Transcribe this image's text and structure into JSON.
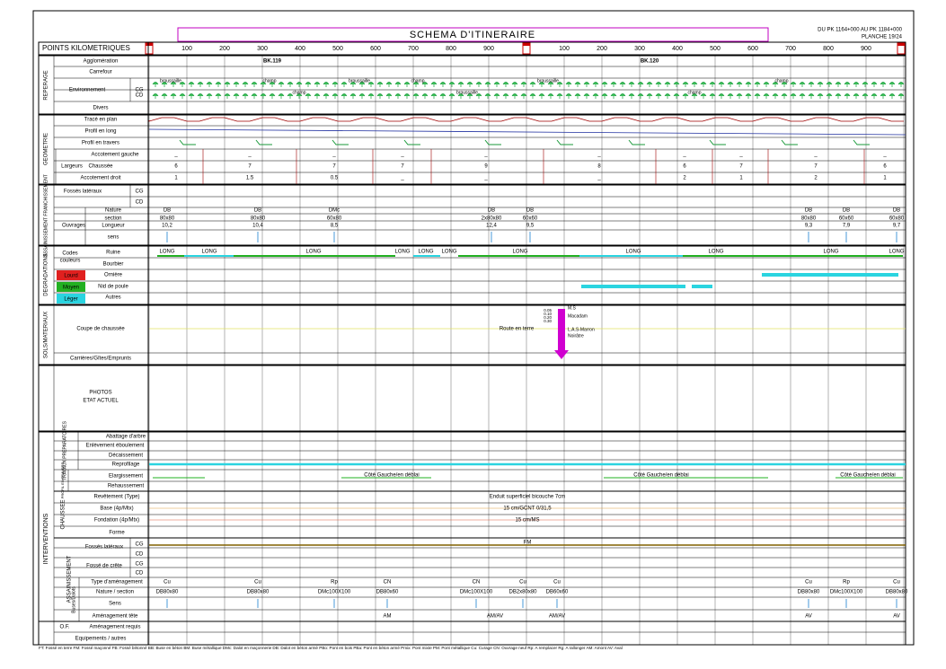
{
  "header": {
    "title": "SCHEMA D'ITINERAIRE",
    "pk_range": "DU PK 1164+000 AU PK 1184+000",
    "sheet": "PLANCHE 19/24"
  },
  "km": {
    "label": "POINTS KILOMETRIQUES",
    "ticks": [
      "100",
      "200",
      "300",
      "400",
      "500",
      "600",
      "700",
      "800",
      "900",
      "100",
      "200",
      "300",
      "400",
      "500",
      "600",
      "700",
      "800",
      "900"
    ]
  },
  "sections": [
    "REPERAGE",
    "GEOMETRIE",
    "ASSAINISSEMENT FRANCHISSEMENT",
    "DEGRADATIONS",
    "SOLS/MATERIAUX",
    "INTERVENTIONS",
    "TRAVAUX PREPARATOIRES",
    "PROFIL EN TRAVERS",
    "CHAUSSEE",
    "ASSAINISSEMENT",
    "Buses/Dalots"
  ],
  "row_labels": [
    "Agglomération",
    "Carrefour",
    "Environnement",
    "Divers",
    "Tracé en plan",
    "Profil en long",
    "Profil en travers",
    "Accotement gauche",
    "Largeurs",
    "Chaussée",
    "Accotement droit",
    "Fossés latéraux",
    "Ouvrages",
    "Nature",
    "section",
    "Longueur",
    "sens",
    "Ruine",
    "Bourbier",
    "Ornière",
    "Nid de poule",
    "Autres",
    "Codes",
    "couleurs",
    "Coupe de chaussée",
    "Carrières/Gîtes/Emprunts",
    "PHOTOS",
    "ETAT ACTUEL",
    "Abattage d'arbre",
    "Enlèvement éboulement",
    "Décaissement",
    "Reprofilage",
    "Elargissement",
    "Rehaussement",
    "Revêtement (Type)",
    "Base (4p/Mtx)",
    "Fondation (4p/Mtx)",
    "Forme",
    "Fossés latéraux",
    "Fossé de crête",
    "Type d'aménagement",
    "Nature / section",
    "Sens",
    "Aménagement tête",
    "O.F.",
    "Aménagement requis",
    "Equipements / autres"
  ],
  "sides": [
    "CG",
    "CD"
  ],
  "severity": {
    "labels": [
      "Lourd",
      "Moyen",
      "Léger"
    ],
    "colors": [
      "#e0201f",
      "#22b022",
      "#2ad4e0"
    ]
  },
  "landmarks": [
    "BK.119",
    "BK.120"
  ],
  "environment": {
    "CG": [
      "broussaille",
      "champ",
      "broussaille",
      "champ",
      "broussaille",
      "champ"
    ],
    "CD": [
      "champ",
      "broussaille",
      "champ"
    ]
  },
  "widths": {
    "left": [
      "_",
      "_",
      "_",
      "_",
      "_",
      "_",
      "_",
      "_",
      "_",
      "_"
    ],
    "carriageway": [
      6,
      7,
      7,
      7,
      9,
      8,
      6,
      7,
      7,
      6
    ],
    "right": [
      1,
      1.5,
      0.5,
      "_",
      "_",
      "_",
      2,
      1,
      2,
      1
    ]
  },
  "culverts": {
    "nature": [
      "DB",
      "DB",
      "DMc",
      "DB",
      "DB",
      "DB",
      "DB",
      "DB"
    ],
    "section": [
      "80x80",
      "80x80",
      "60x80",
      "2x80x80",
      "60x60",
      "80x80",
      "60x60",
      "60x80"
    ],
    "length": [
      "10,2",
      "10,4",
      "8,5",
      "12,4",
      "9,5",
      "9,3",
      "7,9",
      "9,7"
    ]
  },
  "ruin_labels": [
    "LONG",
    "LONG",
    "LONG",
    "LONG",
    "LONG",
    "LONG",
    "LONG",
    "LONG",
    "LONG",
    "LONG",
    "LONG"
  ],
  "soil": {
    "surface": "Route en terre",
    "depths": [
      "0.05",
      "0.10",
      "0.20",
      "0.30"
    ],
    "layers": [
      "M.S",
      "Macadam",
      "L.A.S-Marron",
      "Noirâtre"
    ]
  },
  "works": {
    "widening": [
      "Côté Gauche/en déblai",
      "Côté Gauche/en déblai",
      "Côté Gauche/en déblai"
    ],
    "surfacing": "Enduit superficiel bicouche 7cm",
    "base": "15 cm/GCNT 0/31,5",
    "subbase": "15 cm/MS",
    "ditch": "FM",
    "culvert_type": [
      "Cu",
      "Cu",
      "Rp",
      "CN",
      "CN",
      "Cu",
      "Cu",
      "Cu",
      "Rp",
      "Cu"
    ],
    "culvert_section": [
      "DB80x80",
      "DB80x80",
      "DMc100X100",
      "DB80x60",
      "DMc100X100",
      "DB2x80x80",
      "DB60x60",
      "DB80x80",
      "DMc100X100",
      "DB80x80"
    ],
    "culvert_head": [
      "AM",
      "AM/AV",
      "AM/AV",
      "AV",
      "AV"
    ]
  },
  "footer": "FT: Fossé en terre  FM: Fossé maçonné  FB: Fossé bétonné  BB: Buse en béton  BM: Buse métallique  DMc: Dalot en maçonnerie  DB: Dalot en béton armé  PBo: Pont en bois  PBa: Pont en béton armé  Pmix: Pont mixte  PM: Pont métallique  Cu: Curage  CN: Ouvrage neuf  Rp: A remplacer  Rg: A rallonger  AM: Amont  AV: Aval"
}
